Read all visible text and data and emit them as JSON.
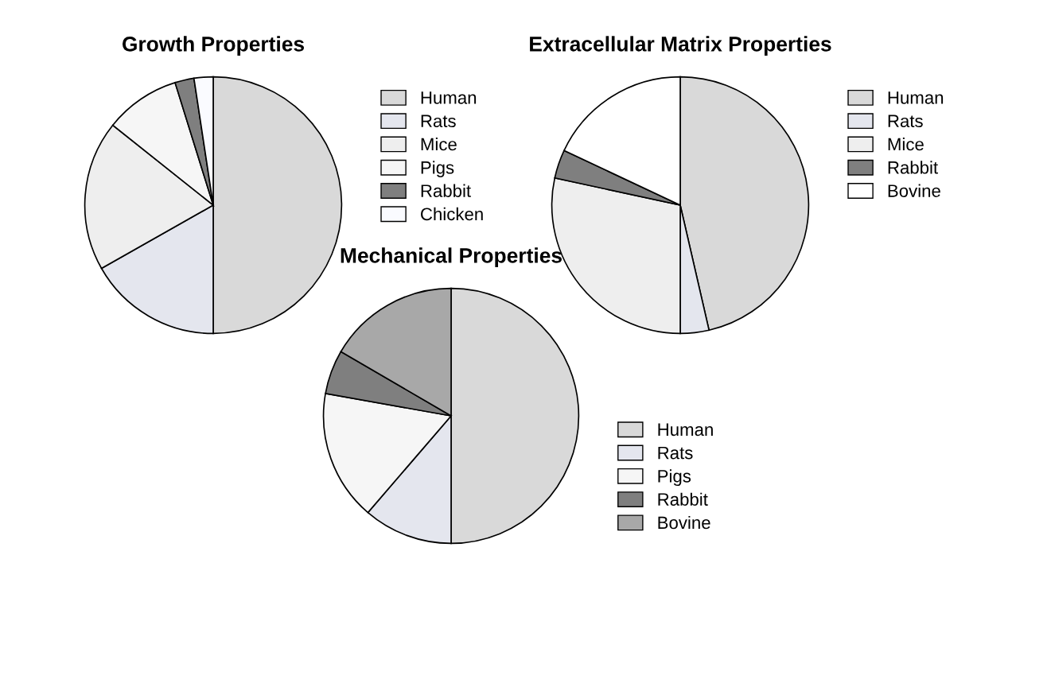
{
  "chart_data": [
    {
      "type": "pie",
      "title": "Growth Properties",
      "categories": [
        "Human",
        "Rats",
        "Mice",
        "Pigs",
        "Rabbit",
        "Chicken"
      ],
      "values": [
        50,
        16.8,
        18.9,
        9.5,
        2.4,
        2.4
      ],
      "colors": [
        "#d9d9d9",
        "#e4e6ee",
        "#eeeeee",
        "#f6f6f6",
        "#7f7f7f",
        "#fafbff"
      ],
      "legend": "top right"
    },
    {
      "type": "pie",
      "title": "Extracellular Matrix Properties",
      "categories": [
        "Human",
        "Rats",
        "Mice",
        "Rabbit",
        "Bovine"
      ],
      "values": [
        46.4,
        3.6,
        28.4,
        3.6,
        18.0
      ],
      "colors": [
        "#d9d9d9",
        "#e4e6ee",
        "#eeeeee",
        "#7f7f7f",
        "#ffffff"
      ],
      "legend": "top right"
    },
    {
      "type": "pie",
      "title": "Mechanical Properties",
      "categories": [
        "Human",
        "Rats",
        "Pigs",
        "Rabbit",
        "Bovine"
      ],
      "values": [
        50,
        11.3,
        16.5,
        5.6,
        16.6
      ],
      "colors": [
        "#d9d9d9",
        "#e4e6ee",
        "#f6f6f6",
        "#7f7f7f",
        "#a8a8a8"
      ],
      "legend": "bottom right"
    }
  ]
}
